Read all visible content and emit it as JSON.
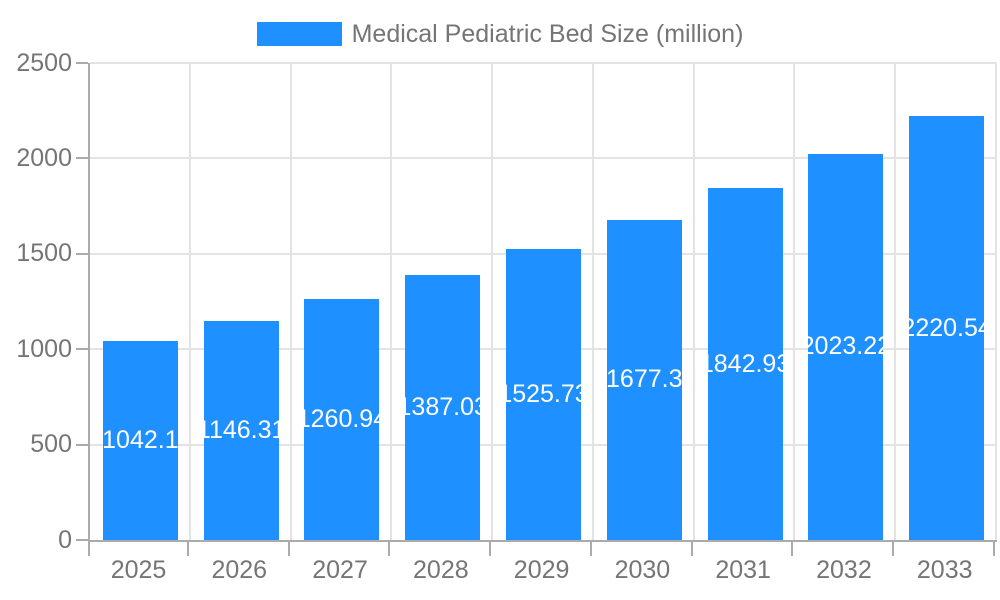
{
  "chart_data": {
    "type": "bar",
    "title": "",
    "legend": {
      "label": "Medical Pediatric Bed Size (million)",
      "position": "top"
    },
    "categories": [
      "2025",
      "2026",
      "2027",
      "2028",
      "2029",
      "2030",
      "2031",
      "2032",
      "2033"
    ],
    "series": [
      {
        "name": "Medical Pediatric Bed Size (million)",
        "values": [
          1042.1,
          1146.31,
          1260.94,
          1387.03,
          1525.73,
          1677.3,
          1842.93,
          2023.22,
          2220.54
        ]
      }
    ],
    "data_labels": [
      "1042.1",
      "1146.31",
      "1260.94",
      "1387.03",
      "1525.73",
      "1677.3",
      "1842.93",
      "2023.22",
      "2220.54"
    ],
    "xlabel": "",
    "ylabel": "",
    "ylim": [
      0,
      2500
    ],
    "yticks": [
      0,
      500,
      1000,
      1500,
      2000,
      2500
    ],
    "grid": true,
    "colors": {
      "bar": "#1E90FF",
      "data_label_text": "#ffffff",
      "axis_line": "#ababab",
      "gridline": "#e3e3e3",
      "axis_text": "#757575",
      "legend_text": "#757575"
    }
  }
}
